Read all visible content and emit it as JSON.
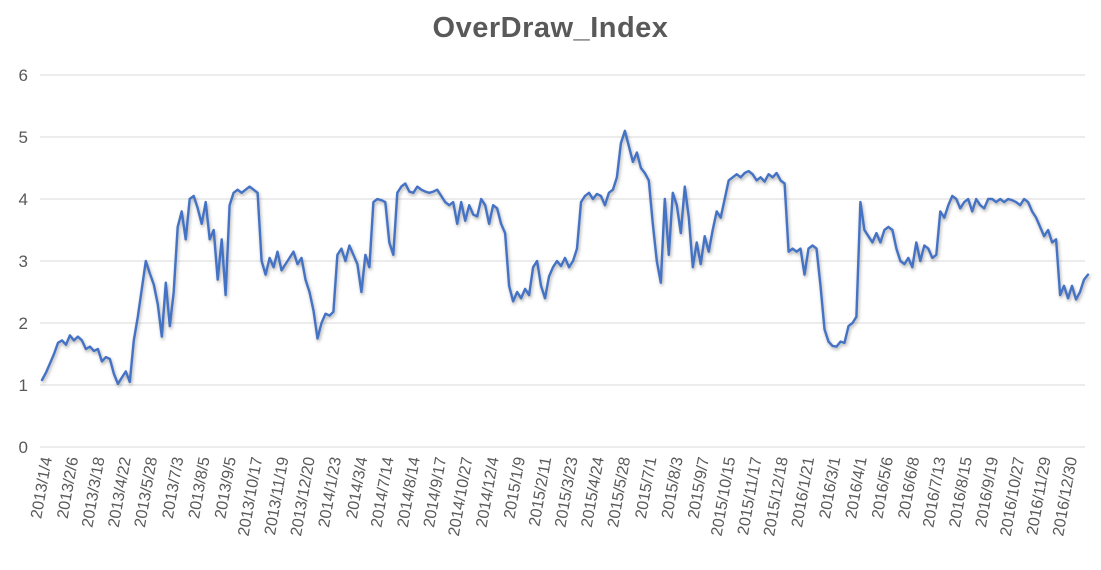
{
  "chart_data": {
    "type": "line",
    "title": "OverDraw_Index",
    "xlabel": "",
    "ylabel": "",
    "ylim": [
      0,
      6
    ],
    "grid": "horizontal-only",
    "legend": "none",
    "line_color": "#4472C4",
    "gridline_color": "#D9D9D9",
    "text_color": "#595959",
    "y_tick_labels": [
      "0",
      "1",
      "2",
      "3",
      "4",
      "5",
      "6"
    ],
    "x_tick_labels": [
      "2013/1/4",
      "2013/2/6",
      "2013/3/18",
      "2013/4/22",
      "2013/5/28",
      "2013/7/3",
      "2013/8/5",
      "2013/9/5",
      "2013/10/17",
      "2013/11/19",
      "2013/12/20",
      "2014/1/23",
      "2014/3/4",
      "2014/7/14",
      "2014/8/14",
      "2014/9/17",
      "2014/10/27",
      "2014/12/4",
      "2015/1/9",
      "2015/2/11",
      "2015/3/23",
      "2015/4/24",
      "2015/5/28",
      "2015/7/1",
      "2015/8/3",
      "2015/9/7",
      "2015/10/15",
      "2015/11/17",
      "2015/12/18",
      "2016/1/21",
      "2016/3/1",
      "2016/4/1",
      "2016/5/6",
      "2016/6/8",
      "2016/7/13",
      "2016/8/15",
      "2016/9/19",
      "2016/10/27",
      "2016/11/29",
      "2016/12/30"
    ],
    "values": [
      1.08,
      1.2,
      1.35,
      1.5,
      1.68,
      1.72,
      1.65,
      1.8,
      1.72,
      1.78,
      1.72,
      1.58,
      1.62,
      1.55,
      1.58,
      1.38,
      1.45,
      1.42,
      1.18,
      1.02,
      1.12,
      1.22,
      1.05,
      1.72,
      2.1,
      2.55,
      3.0,
      2.8,
      2.62,
      2.3,
      1.78,
      2.65,
      1.95,
      2.5,
      3.55,
      3.8,
      3.35,
      4.0,
      4.05,
      3.85,
      3.6,
      3.95,
      3.35,
      3.5,
      2.7,
      3.35,
      2.45,
      3.9,
      4.1,
      4.15,
      4.1,
      4.15,
      4.2,
      4.15,
      4.1,
      3.0,
      2.78,
      3.05,
      2.9,
      3.15,
      2.85,
      2.95,
      3.05,
      3.15,
      2.95,
      3.05,
      2.7,
      2.5,
      2.2,
      1.75,
      2.0,
      2.15,
      2.12,
      2.18,
      3.1,
      3.2,
      3.0,
      3.25,
      3.1,
      2.95,
      2.5,
      3.1,
      2.9,
      3.95,
      4.0,
      3.98,
      3.95,
      3.3,
      3.1,
      4.1,
      4.2,
      4.25,
      4.12,
      4.1,
      4.2,
      4.15,
      4.12,
      4.1,
      4.12,
      4.15,
      4.05,
      3.95,
      3.9,
      3.95,
      3.6,
      3.95,
      3.65,
      3.9,
      3.75,
      3.72,
      4.0,
      3.9,
      3.6,
      3.9,
      3.85,
      3.6,
      3.45,
      2.6,
      2.35,
      2.5,
      2.4,
      2.55,
      2.45,
      2.9,
      3.0,
      2.6,
      2.4,
      2.75,
      2.9,
      3.0,
      2.92,
      3.05,
      2.9,
      3.0,
      3.2,
      3.95,
      4.05,
      4.1,
      4.0,
      4.08,
      4.05,
      3.9,
      4.1,
      4.15,
      4.35,
      4.9,
      5.1,
      4.85,
      4.6,
      4.75,
      4.5,
      4.42,
      4.3,
      3.6,
      3.0,
      2.65,
      4.0,
      3.1,
      4.1,
      3.9,
      3.45,
      4.2,
      3.7,
      2.9,
      3.3,
      2.95,
      3.4,
      3.15,
      3.5,
      3.8,
      3.7,
      4.0,
      4.3,
      4.35,
      4.4,
      4.35,
      4.42,
      4.45,
      4.4,
      4.3,
      4.35,
      4.28,
      4.4,
      4.35,
      4.42,
      4.3,
      4.25,
      3.15,
      3.2,
      3.15,
      3.2,
      2.78,
      3.2,
      3.25,
      3.2,
      2.6,
      1.9,
      1.7,
      1.63,
      1.62,
      1.7,
      1.68,
      1.95,
      2.0,
      2.1,
      3.95,
      3.5,
      3.4,
      3.3,
      3.45,
      3.3,
      3.5,
      3.55,
      3.5,
      3.2,
      3.0,
      2.95,
      3.05,
      2.9,
      3.3,
      3.0,
      3.25,
      3.2,
      3.05,
      3.1,
      3.8,
      3.7,
      3.9,
      4.05,
      4.0,
      3.85,
      3.95,
      4.0,
      3.8,
      4.0,
      3.9,
      3.85,
      4.0,
      4.0,
      3.95,
      4.0,
      3.95,
      4.0,
      3.98,
      3.95,
      3.9,
      4.0,
      3.95,
      3.8,
      3.7,
      3.55,
      3.4,
      3.5,
      3.3,
      3.35,
      2.45,
      2.6,
      2.4,
      2.6,
      2.38,
      2.5,
      2.7,
      2.78
    ]
  }
}
